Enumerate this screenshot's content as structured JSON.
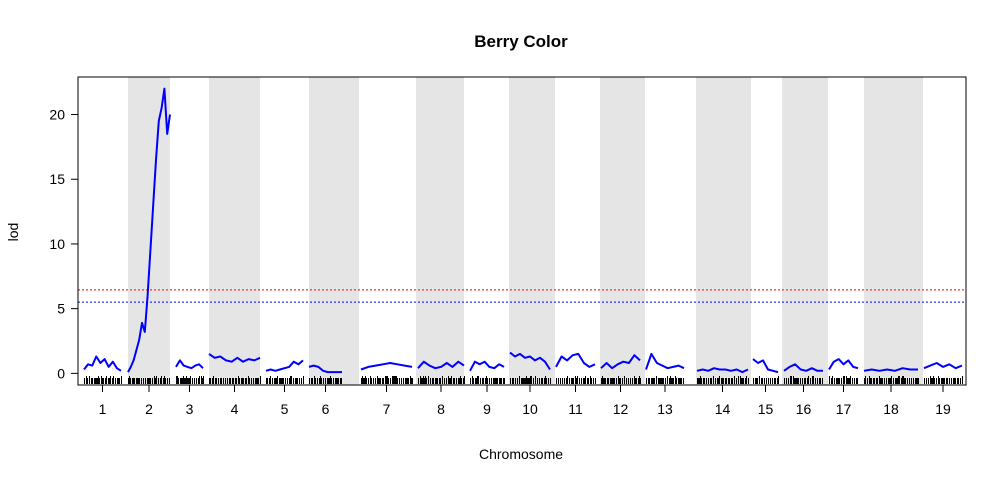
{
  "chart_data": {
    "type": "line",
    "title": "Berry Color",
    "xlabel": "Chromosome",
    "ylabel": "lod",
    "ylim": [
      -0.9,
      22.9
    ],
    "yticks": [
      0,
      5,
      10,
      15,
      20
    ],
    "grid": false,
    "alternating_band_color": "#e5e5e5",
    "line_color": "#0000ff",
    "thresholds": [
      {
        "value": 6.45,
        "color": "#ff0000",
        "style": "dotted"
      },
      {
        "value": 5.5,
        "color": "#0000ff",
        "style": "dotted"
      }
    ],
    "chromosomes": [
      {
        "label": "1",
        "lod": [
          0.3,
          0.7,
          0.6,
          1.3,
          0.8,
          1.1,
          0.5,
          0.9,
          0.4,
          0.2
        ]
      },
      {
        "label": "2",
        "lod": [
          0.1,
          0.5,
          1.0,
          1.8,
          2.6,
          3.9,
          3.2,
          6.0,
          9.5,
          13.0,
          16.5,
          19.5,
          20.5,
          22.0,
          18.5,
          20.0
        ]
      },
      {
        "label": "3",
        "lod": [
          0.5,
          1.0,
          0.6,
          0.5,
          0.4,
          0.6,
          0.7,
          0.4
        ]
      },
      {
        "label": "4",
        "lod": [
          1.5,
          1.2,
          1.3,
          1.0,
          0.9,
          1.2,
          0.9,
          1.1,
          1.0,
          1.2
        ]
      },
      {
        "label": "5",
        "lod": [
          0.2,
          0.3,
          0.2,
          0.3,
          0.4,
          0.5,
          0.9,
          0.7,
          1.0
        ]
      },
      {
        "label": "6",
        "lod": [
          0.5,
          0.6,
          0.5,
          0.2,
          0.1,
          0.1,
          0.1,
          0.1
        ]
      },
      {
        "label": "7",
        "lod": [
          0.3,
          0.5,
          0.6,
          0.7,
          0.8,
          0.7,
          0.6,
          0.5
        ]
      },
      {
        "label": "8",
        "lod": [
          0.4,
          0.9,
          0.6,
          0.4,
          0.5,
          0.8,
          0.5,
          0.9,
          0.6
        ]
      },
      {
        "label": "9",
        "lod": [
          0.2,
          0.9,
          0.7,
          0.9,
          0.5,
          0.4,
          0.7,
          0.5
        ]
      },
      {
        "label": "10",
        "lod": [
          1.6,
          1.3,
          1.5,
          1.2,
          1.3,
          1.0,
          1.2,
          0.9,
          0.3
        ]
      },
      {
        "label": "11",
        "lod": [
          0.5,
          1.3,
          1.0,
          1.4,
          1.5,
          0.8,
          0.5,
          0.7
        ]
      },
      {
        "label": "12",
        "lod": [
          0.4,
          0.8,
          0.4,
          0.7,
          0.9,
          0.8,
          1.4,
          1.0
        ]
      },
      {
        "label": "13",
        "lod": [
          0.3,
          1.5,
          0.8,
          0.6,
          0.4,
          0.5,
          0.6,
          0.4
        ]
      },
      {
        "label": "14",
        "lod": [
          0.2,
          0.3,
          0.2,
          0.4,
          0.3,
          0.3,
          0.2,
          0.3,
          0.1,
          0.3
        ]
      },
      {
        "label": "15",
        "lod": [
          1.1,
          0.8,
          1.0,
          0.3,
          0.2,
          0.1
        ]
      },
      {
        "label": "16",
        "lod": [
          0.2,
          0.5,
          0.7,
          0.3,
          0.2,
          0.4,
          0.2,
          0.2
        ]
      },
      {
        "label": "17",
        "lod": [
          0.3,
          0.9,
          1.1,
          0.7,
          1.0,
          0.5,
          0.4
        ]
      },
      {
        "label": "18",
        "lod": [
          0.2,
          0.3,
          0.2,
          0.3,
          0.2,
          0.4,
          0.3,
          0.3
        ]
      },
      {
        "label": "19",
        "lod": [
          0.4,
          0.6,
          0.8,
          0.5,
          0.7,
          0.4,
          0.6
        ]
      }
    ]
  }
}
